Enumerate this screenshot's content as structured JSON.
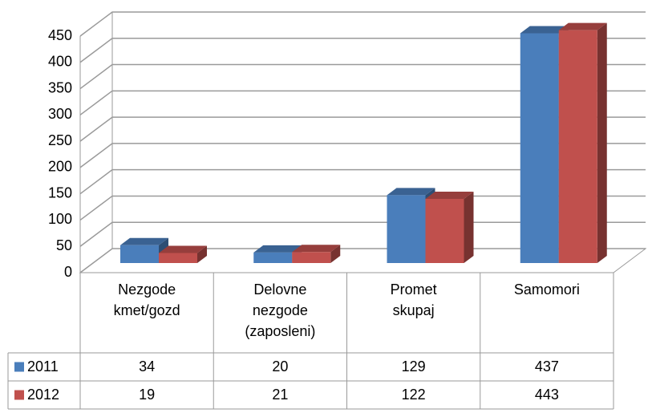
{
  "chart_data": {
    "type": "bar3d",
    "categories": [
      "Nezgode\nkmet/gozd",
      "Delovne\nnezgode\n(zaposleni)",
      "Promet\nskupaj",
      "Samomori"
    ],
    "series": [
      {
        "name": "2011",
        "color": "#4a7ebb",
        "values": [
          34,
          20,
          129,
          437
        ]
      },
      {
        "name": "2012",
        "color": "#c0504d",
        "values": [
          19,
          21,
          122,
          443
        ]
      }
    ],
    "ylim": [
      0,
      450
    ],
    "yticks": [
      0,
      50,
      100,
      150,
      200,
      250,
      300,
      350,
      400,
      450
    ],
    "grid": true
  }
}
